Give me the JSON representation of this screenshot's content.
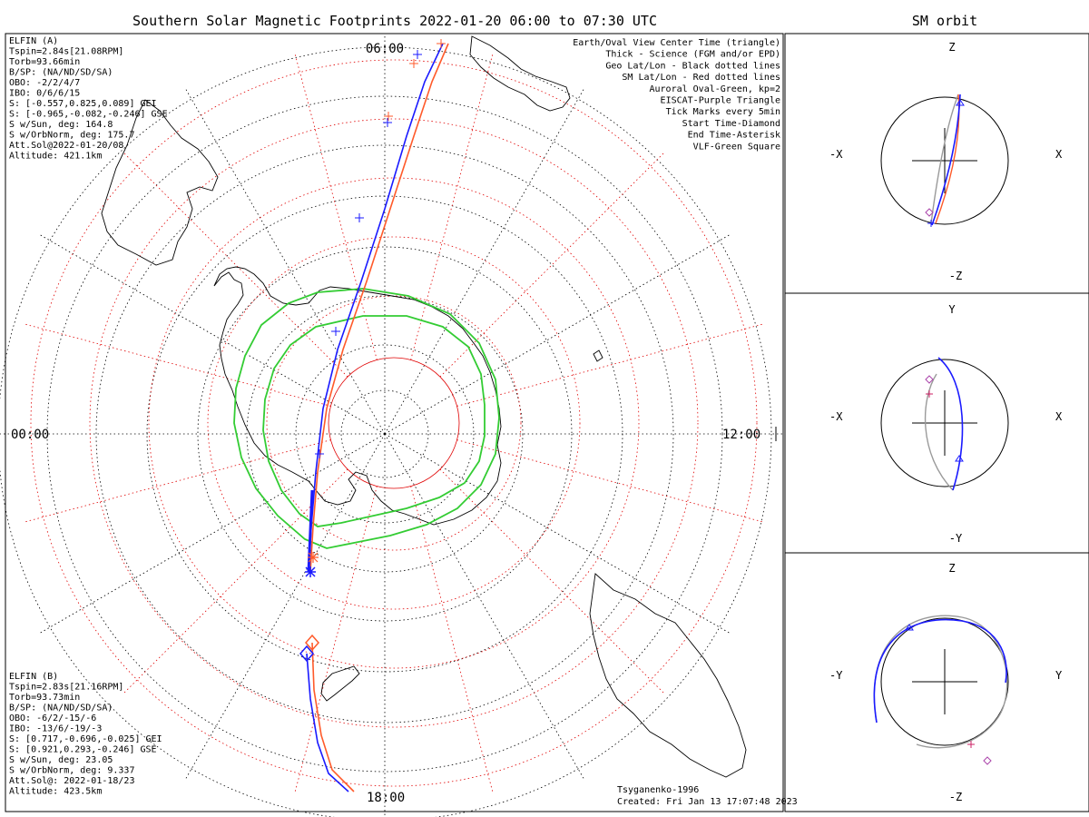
{
  "title": "Southern Solar Magnetic Footprints 2022-01-20 06:00 to 07:30 UTC",
  "right_title": "SM orbit",
  "time_labels": {
    "top": "06:00",
    "left": "00:00",
    "right": "12:00",
    "bottom": "18:00"
  },
  "probe_a": {
    "color": "#1a1aff",
    "lines": [
      "ELFIN (A)",
      "Tspin=2.84s[21.08RPM]",
      "Torb=93.66min",
      "B/SP: (NA/ND/SD/SA)",
      "OBO: -2/2/4/7",
      "IBO: 0/6/6/15",
      "S: [-0.557,0.825,0.089] GEI",
      "S: [-0.965,-0.082,-0.246] GSE",
      "S w/Sun, deg: 164.8",
      "S w/OrbNorm, deg: 175.7",
      "Att.Sol@2022-01-20/08",
      "Altitude: 421.1km"
    ]
  },
  "probe_b": {
    "color": "#ff5a2a",
    "lines": [
      "ELFIN (B)",
      "Tspin=2.83s[21.16RPM]",
      "Torb=93.73min",
      "B/SP: (NA/ND/SD/SA)",
      "OBO: -6/2/-15/-6",
      "IBO: -13/6/-19/-3",
      "S: [0.717,-0.696,-0.025] GEI",
      "S: [0.921,0.293,-0.246] GSE",
      "S w/Sun, deg: 23.05",
      "S w/OrbNorm, deg: 9.337",
      "Att.Sol@: 2022-01-18/23",
      "Altitude: 423.5km"
    ]
  },
  "legend": [
    {
      "text": "Earth/Oval View Center Time (triangle)",
      "color": "#000000"
    },
    {
      "text": "Thick - Science (FGM and/or EPD)",
      "color": "#000000"
    },
    {
      "text": "Geo Lat/Lon - Black dotted lines",
      "color": "#000000"
    },
    {
      "text": "SM Lat/Lon - Red dotted lines",
      "color": "#e00000"
    },
    {
      "text": "Auroral Oval-Green, kp=2",
      "color": "#33cc33"
    },
    {
      "text": "EISCAT-Purple Triangle",
      "color": "#dd66dd"
    },
    {
      "text": "Tick Marks every 5min",
      "color": "#000000"
    },
    {
      "text": "Start Time-Diamond",
      "color": "#000000"
    },
    {
      "text": "End Time-Asterisk",
      "color": "#000000"
    },
    {
      "text": "VLF-Green Square",
      "color": "#33cc33"
    }
  ],
  "footer": {
    "model": "Tsyganenko-1996",
    "created": "Created: Fri Jan 13 17:07:48 2023"
  },
  "orbit_panels": [
    {
      "top": "Z",
      "bottom": "-Z",
      "left": "-X",
      "right": "X"
    },
    {
      "top": "Y",
      "bottom": "-Y",
      "left": "-X",
      "right": "X"
    },
    {
      "top": "Z",
      "bottom": "-Z",
      "left": "-Y",
      "right": "Y"
    }
  ],
  "colors": {
    "geo_grid": "#000000",
    "sm_grid": "#e00000",
    "oval": "#33cc33",
    "orbit_gray": "#9a9a9a"
  }
}
